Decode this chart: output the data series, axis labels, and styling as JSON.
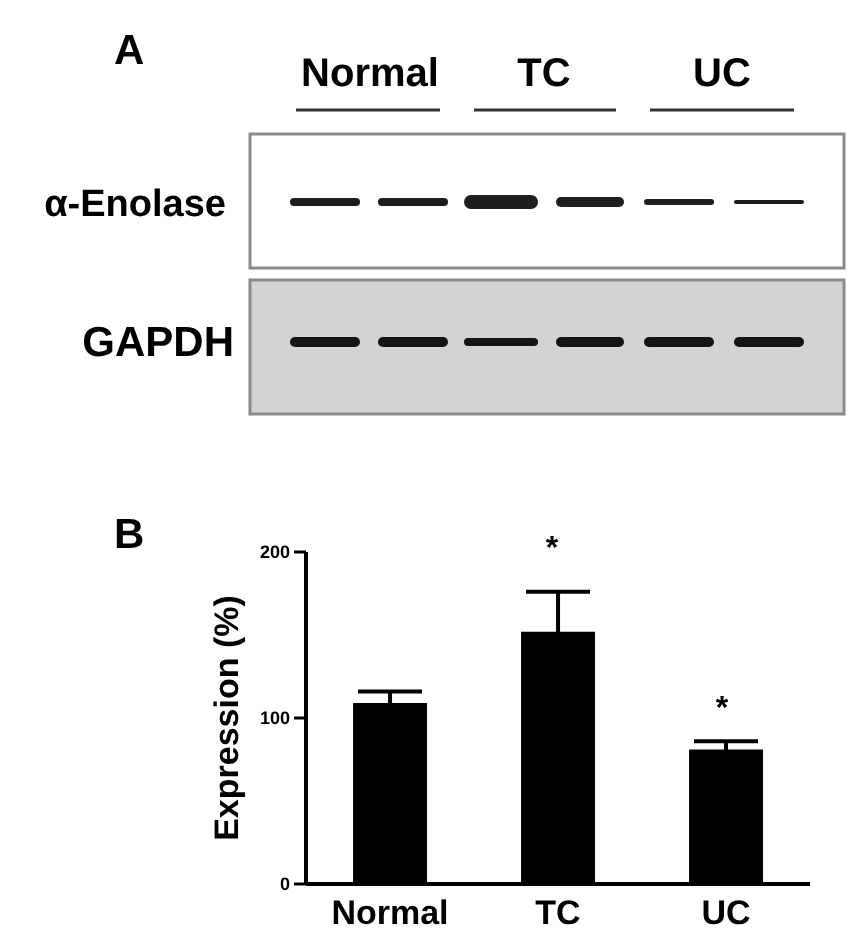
{
  "chart_data": {
    "type": "bar",
    "ylabel": "Expression (%)",
    "categories": [
      "Normal",
      "TC",
      "UC"
    ],
    "values": [
      109,
      152,
      81
    ],
    "errors": [
      7,
      24,
      5
    ],
    "color": "#000000",
    "ylim": [
      0,
      200
    ],
    "yticks": [
      0,
      100,
      200
    ],
    "annotations": [
      "A",
      "Normal",
      "TC",
      "UC",
      "α-Enolase",
      "GAPDH",
      "B",
      "*",
      "*"
    ]
  }
}
